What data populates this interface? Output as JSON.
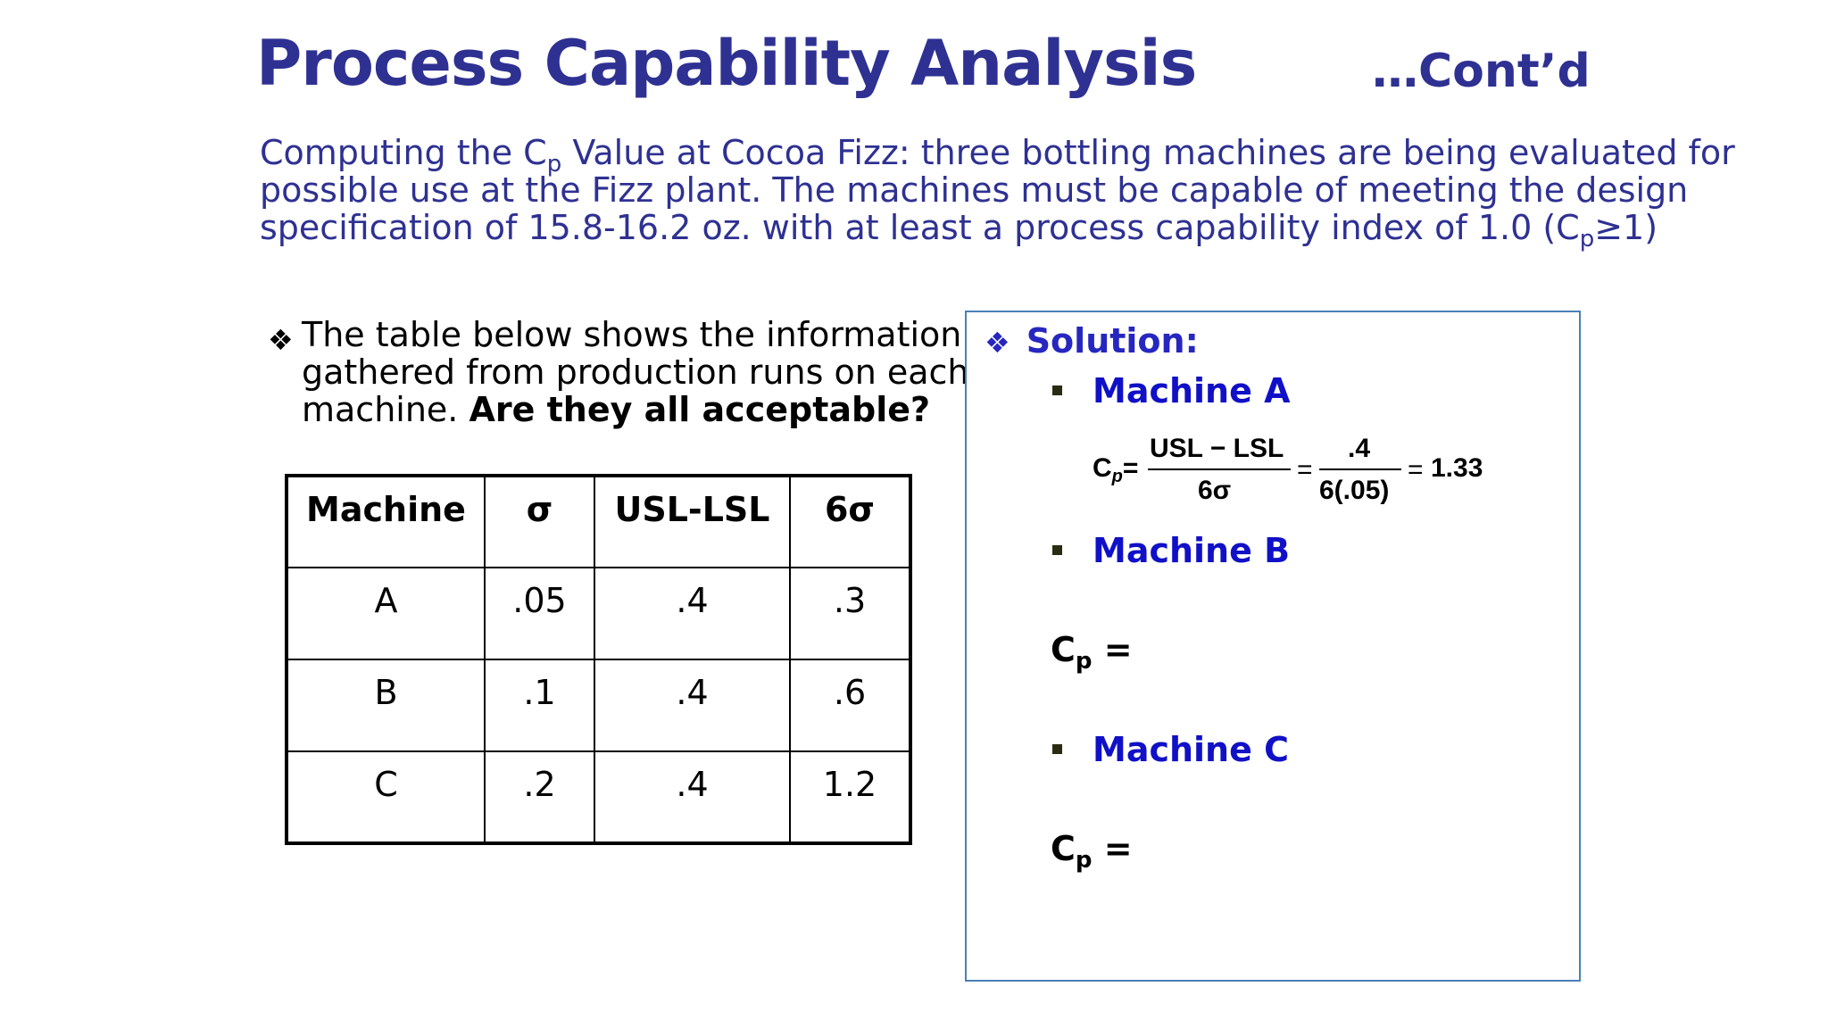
{
  "header": {
    "title": "Process Capability Analysis",
    "contd": "…Cont’d"
  },
  "intro": {
    "line1_a": "Computing the C",
    "line1_sub": "p",
    "line1_b": " Value at Cocoa Fizz: three bottling machines are being evaluated for",
    "line2": "possible use at the Fizz plant. The machines must be capable of meeting the design",
    "line3_a": "specification of 15.8-16.2 oz. with at least a process capability index of 1.0 (C",
    "line3_sub": "p",
    "line3_b": "≥1)"
  },
  "bullet": {
    "line1": "The table below shows the information",
    "line2": "gathered from production runs on each",
    "line3_a": "machine. ",
    "line3_bold": "Are they all acceptable?"
  },
  "table": {
    "headers": [
      "Machine",
      "σ",
      "USL-LSL",
      "6σ"
    ],
    "rows": [
      [
        "A",
        ".05",
        ".4",
        ".3"
      ],
      [
        "B",
        ".1",
        ".4",
        ".6"
      ],
      [
        "C",
        ".2",
        ".4",
        "1.2"
      ]
    ]
  },
  "solution": {
    "heading": "Solution:",
    "machine_a": "Machine A",
    "machine_b": "Machine B",
    "machine_c": "Machine C",
    "formula": {
      "cp": "C",
      "cp_sub": "p",
      "eq": "=",
      "num1": "USL − LSL",
      "den1": "6σ",
      "num2": ".4",
      "den2": "6(.05)",
      "result": "1.33"
    },
    "cp_b": "C",
    "cp_b_sub": "p",
    "cp_b_eq": " =",
    "cp_c": "C",
    "cp_c_sub": "p",
    "cp_c_eq": " ="
  }
}
